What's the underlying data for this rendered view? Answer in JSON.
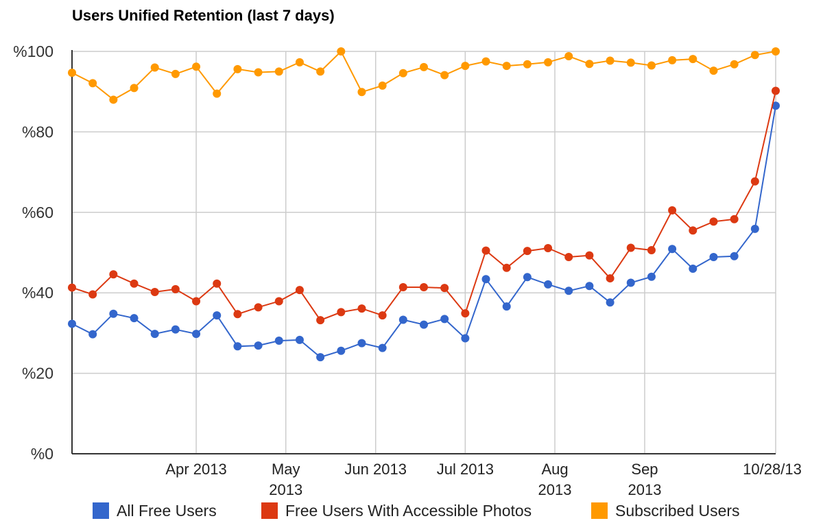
{
  "chart_data": {
    "type": "line",
    "title": "Users Unified Retention (last 7 days)",
    "xlabel": "",
    "ylabel": "",
    "ylim": [
      0,
      100
    ],
    "yticks": [
      {
        "value": 0,
        "label": "%0"
      },
      {
        "value": 20,
        "label": "%20"
      },
      {
        "value": 40,
        "label": "%40"
      },
      {
        "value": 60,
        "label": "%60"
      },
      {
        "value": 80,
        "label": "%80"
      },
      {
        "value": 100,
        "label": "%100"
      }
    ],
    "x_index_range": [
      0,
      34
    ],
    "xticks": [
      {
        "index": 6,
        "lines": [
          "Apr 2013"
        ]
      },
      {
        "index": 10.33,
        "lines": [
          "May",
          "2013"
        ]
      },
      {
        "index": 14.67,
        "lines": [
          "Jun 2013"
        ]
      },
      {
        "index": 19,
        "lines": [
          "Jul 2013"
        ]
      },
      {
        "index": 23.33,
        "lines": [
          "Aug",
          "2013"
        ]
      },
      {
        "index": 27.67,
        "lines": [
          "Sep",
          "2013"
        ]
      },
      {
        "index": 34,
        "lines": [
          "10/28/13"
        ]
      }
    ],
    "grid": true,
    "legend_position": "bottom",
    "series": [
      {
        "name": "All Free Users",
        "color": "#3366cc",
        "values": [
          32.3,
          29.7,
          34.8,
          33.7,
          29.8,
          30.9,
          29.8,
          34.4,
          26.7,
          26.9,
          28.1,
          28.3,
          24.0,
          25.6,
          27.5,
          26.3,
          33.3,
          32.1,
          33.5,
          28.7,
          43.4,
          36.6,
          43.9,
          42.1,
          40.5,
          41.7,
          37.6,
          42.5,
          44.0,
          50.9,
          46.0,
          48.9,
          49.1,
          55.9,
          86.5
        ]
      },
      {
        "name": "Free Users With Accessible Photos",
        "color": "#dc3912",
        "values": [
          41.3,
          39.6,
          44.6,
          42.3,
          40.2,
          40.9,
          37.9,
          42.3,
          34.7,
          36.4,
          37.9,
          40.7,
          33.2,
          35.2,
          36.1,
          34.4,
          41.4,
          41.4,
          41.2,
          34.9,
          50.5,
          46.2,
          50.4,
          51.1,
          48.9,
          49.3,
          43.6,
          51.2,
          50.6,
          60.5,
          55.5,
          57.7,
          58.3,
          67.7,
          90.2
        ]
      },
      {
        "name": "Subscribed Users",
        "color": "#ff9900",
        "values": [
          94.7,
          92.1,
          88.0,
          90.9,
          96.0,
          94.4,
          96.2,
          89.5,
          95.6,
          94.8,
          95.0,
          97.3,
          95.0,
          100.0,
          89.9,
          91.5,
          94.6,
          96.1,
          94.1,
          96.4,
          97.5,
          96.4,
          96.8,
          97.3,
          98.8,
          96.9,
          97.7,
          97.2,
          96.5,
          97.8,
          98.1,
          95.2,
          96.8,
          99.1,
          100.0
        ]
      }
    ]
  }
}
